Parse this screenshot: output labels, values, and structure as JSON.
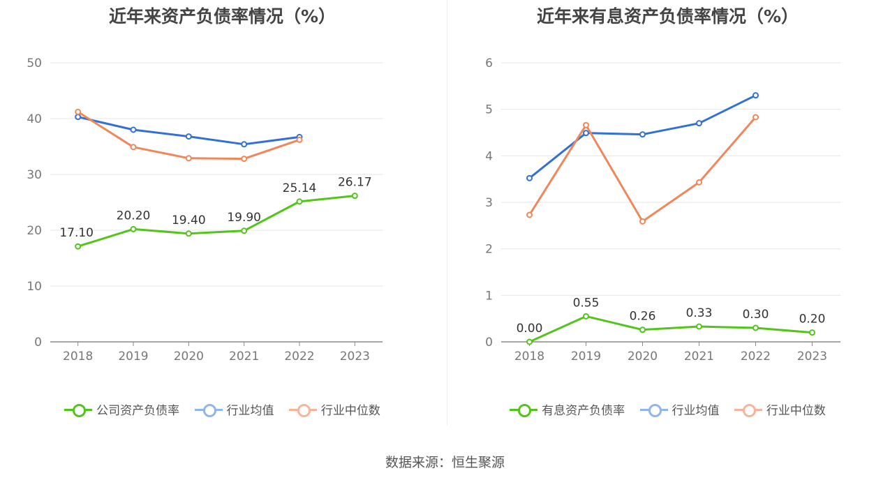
{
  "chart_data": [
    {
      "type": "line",
      "title": "近年来资产负债率情况（%）",
      "categories": [
        "2018",
        "2019",
        "2020",
        "2021",
        "2022",
        "2023"
      ],
      "ylim": [
        0,
        50
      ],
      "yticks": [
        0,
        10,
        20,
        30,
        40,
        50
      ],
      "grid": true,
      "legend_position": "bottom",
      "series": [
        {
          "name": "公司资产负债率",
          "color": "#52c41a",
          "values": [
            17.1,
            20.2,
            19.4,
            19.9,
            25.14,
            26.17
          ],
          "labels": [
            "17.10",
            "20.20",
            "19.40",
            "19.90",
            "25.14",
            "26.17"
          ]
        },
        {
          "name": "行业均值",
          "color": "#3370d6",
          "values": [
            40.3,
            38.0,
            36.8,
            35.4,
            36.7,
            null
          ]
        },
        {
          "name": "行业中位数",
          "color": "#f0875a",
          "values": [
            41.2,
            34.9,
            32.9,
            32.8,
            36.2,
            null
          ]
        }
      ]
    },
    {
      "type": "line",
      "title": "近年来有息资产负债率情况（%）",
      "categories": [
        "2018",
        "2019",
        "2020",
        "2021",
        "2022",
        "2023"
      ],
      "ylim": [
        0,
        6
      ],
      "yticks": [
        0,
        1,
        2,
        3,
        4,
        5,
        6
      ],
      "grid": true,
      "legend_position": "bottom",
      "series": [
        {
          "name": "有息资产负债率",
          "color": "#52c41a",
          "values": [
            0.0,
            0.55,
            0.26,
            0.33,
            0.3,
            0.2
          ],
          "labels": [
            "0.00",
            "0.55",
            "0.26",
            "0.33",
            "0.30",
            "0.20"
          ]
        },
        {
          "name": "行业均值",
          "color": "#3370d6",
          "values": [
            3.52,
            4.49,
            4.46,
            4.7,
            5.3,
            null
          ]
        },
        {
          "name": "行业中位数",
          "color": "#f0875a",
          "values": [
            2.73,
            4.66,
            2.59,
            3.43,
            4.83,
            null
          ]
        }
      ]
    }
  ],
  "legend_colors": {
    "series_0": "#52c41a",
    "series_1": "#8fb4ef",
    "series_2": "#f6b49b"
  },
  "source_text": "数据来源：恒生聚源"
}
